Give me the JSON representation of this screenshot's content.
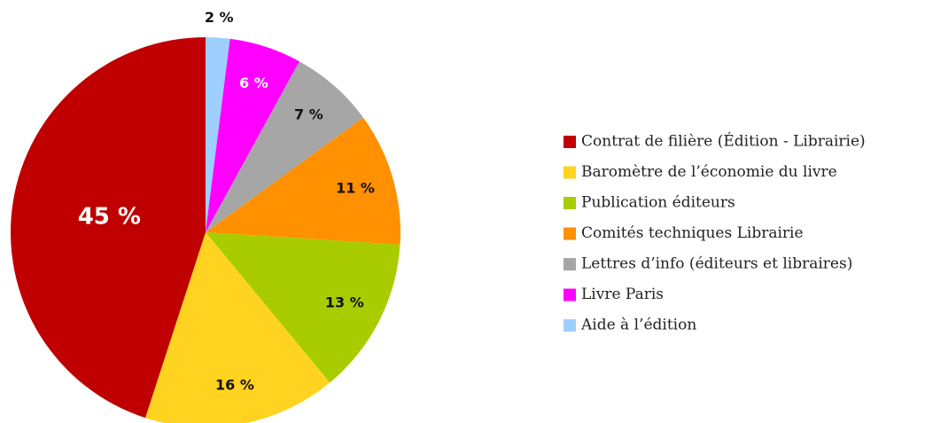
{
  "chart_data": {
    "type": "pie",
    "categories": [
      "Contrat de filière (Édition - Librairie)",
      "Baromètre de l’économie du livre",
      "Publication éditeurs",
      "Comités techniques Librairie",
      "Lettres d’info (éditeurs et libraires)",
      "Livre Paris",
      "Aide à l’édition"
    ],
    "values": [
      45,
      16,
      13,
      11,
      7,
      6,
      2
    ],
    "value_labels": [
      "45 %",
      "16 %",
      "13 %",
      "11 %",
      "7 %",
      "6 %",
      "2 %"
    ],
    "colors": [
      "#c00000",
      "#ffd320",
      "#a8cc00",
      "#ff9000",
      "#a6a6a6",
      "#ff00ff",
      "#9fcfff"
    ],
    "legend": "right"
  }
}
